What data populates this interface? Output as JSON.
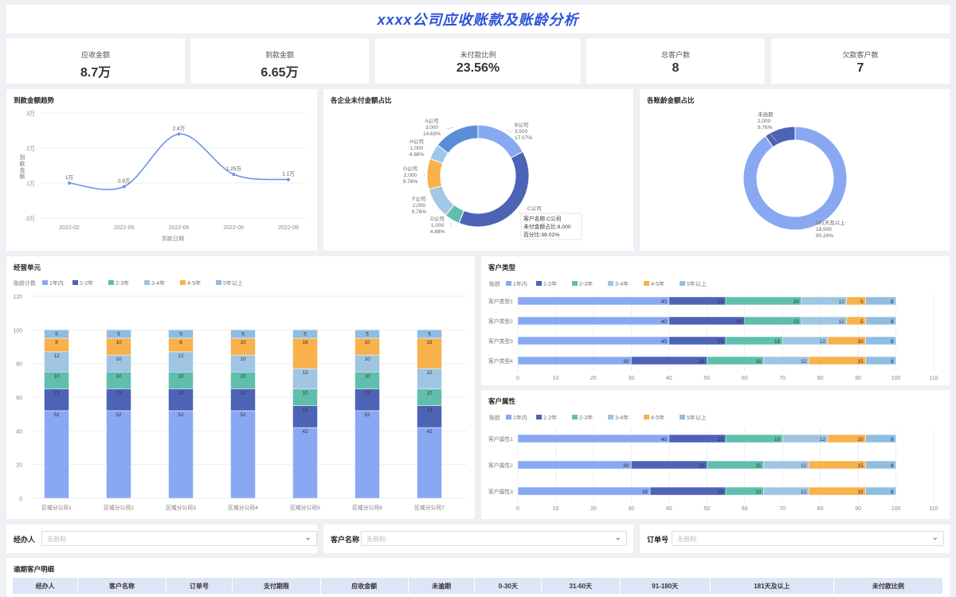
{
  "page_title": "xxxx公司应收账款及账龄分析",
  "kpis": [
    {
      "label": "应收金额",
      "value": "8.7万"
    },
    {
      "label": "到款金额",
      "value": "6.65万"
    },
    {
      "label": "未付款比例",
      "value": "23.56%"
    },
    {
      "label": "总客户数",
      "value": "8"
    },
    {
      "label": "欠款客户数",
      "value": "7"
    }
  ],
  "trend": {
    "title": "到款金额趋势",
    "y_axis_label": "到款金额",
    "x_axis_label": "到款日期",
    "y_ticks": [
      "3万",
      "2万",
      "1万",
      "0万"
    ],
    "categories": [
      "2022-02",
      "2022-05",
      "2022-06",
      "2022-08",
      "2022-09"
    ],
    "values": [
      1.0,
      0.9,
      2.4,
      1.25,
      1.1
    ],
    "value_labels": [
      "1万",
      "0.9万",
      "2.4万",
      "1.25万",
      "1.1万"
    ],
    "line_color": "#6f93e8"
  },
  "unpaid_pie": {
    "title": "各企业未付金额占比",
    "slices": [
      {
        "name": "A公司",
        "value": "3,000",
        "pct": "14.63%",
        "color": "#5b8ed6"
      },
      {
        "name": "B公司",
        "value": "3,500",
        "pct": "17.07%",
        "color": "#88a9f2"
      },
      {
        "name": "C公司",
        "value": "8,000",
        "pct": "39.02%",
        "color": "#4c63b6"
      },
      {
        "name": "D公司",
        "value": "1,000",
        "pct": "4.88%",
        "color": "#5fbfac"
      },
      {
        "name": "F公司",
        "value": "2,000",
        "pct": "9.76%",
        "color": "#a3c7e6"
      },
      {
        "name": "G公司",
        "value": "2,000",
        "pct": "9.76%",
        "color": "#f8b14b"
      },
      {
        "name": "H公司",
        "value": "1,000",
        "pct": "4.88%",
        "color": "#9cc8e8"
      }
    ],
    "tooltip": {
      "line1": "客户名称:C公司",
      "line2": "未付金额占比:8,000",
      "line3": "百分比:39.02%"
    }
  },
  "aging_pie": {
    "title": "各账龄金额占比",
    "slices": [
      {
        "name": "未逾期",
        "value": "2,000",
        "pct": "9.76%",
        "color": "#4c63b6"
      },
      {
        "name": "181天及以上",
        "value": "18,500",
        "pct": "90.24%",
        "color": "#88a9f2"
      }
    ]
  },
  "legend": {
    "prefix_count": "账龄计数",
    "prefix_short": "账龄",
    "items": [
      {
        "name": "1年内",
        "color": "#88a9f2"
      },
      {
        "name": "1-2年",
        "color": "#4c63b6"
      },
      {
        "name": "2-3年",
        "color": "#5fbfac"
      },
      {
        "name": "3-4年",
        "color": "#9fc5e3"
      },
      {
        "name": "4-5年",
        "color": "#f8b14b"
      },
      {
        "name": "5年以上",
        "color": "#8fbde3"
      }
    ]
  },
  "chart_data": [
    {
      "type": "bar",
      "title": "经营单元",
      "orientation": "vertical",
      "stacked": true,
      "ylim": [
        0,
        120
      ],
      "y_ticks": [
        0,
        20,
        40,
        60,
        80,
        100,
        120
      ],
      "categories": [
        "区域分公司1",
        "区域分公司2",
        "区域分公司3",
        "区域分公司4",
        "区域分公司5",
        "区域分公司6",
        "区域分公司7"
      ],
      "series": [
        {
          "name": "1年内",
          "values": [
            52,
            52,
            52,
            52,
            42,
            52,
            42
          ]
        },
        {
          "name": "1-2年",
          "values": [
            13,
            13,
            13,
            13,
            13,
            13,
            13
          ]
        },
        {
          "name": "2-3年",
          "values": [
            10,
            10,
            10,
            10,
            10,
            10,
            10
          ]
        },
        {
          "name": "3-4年",
          "values": [
            12,
            10,
            12,
            10,
            12,
            10,
            12
          ]
        },
        {
          "name": "4-5年",
          "values": [
            8,
            10,
            8,
            10,
            18,
            10,
            18
          ]
        },
        {
          "name": "5年以上",
          "values": [
            5,
            5,
            5,
            5,
            5,
            5,
            5
          ]
        }
      ]
    },
    {
      "type": "bar",
      "title": "客户类型",
      "orientation": "horizontal",
      "stacked": true,
      "xlim": [
        0,
        110
      ],
      "x_ticks": [
        0,
        10,
        20,
        30,
        40,
        50,
        60,
        70,
        80,
        90,
        100,
        110
      ],
      "categories": [
        "客户类型1",
        "客户类型2",
        "客户类型3",
        "客户类型4"
      ],
      "series": [
        {
          "name": "1年内",
          "values": [
            40,
            40,
            40,
            30
          ]
        },
        {
          "name": "1-2年",
          "values": [
            15,
            20,
            15,
            20
          ]
        },
        {
          "name": "2-3年",
          "values": [
            20,
            15,
            15,
            15
          ]
        },
        {
          "name": "3-4年",
          "values": [
            12,
            12,
            12,
            12
          ]
        },
        {
          "name": "4-5年",
          "values": [
            5,
            5,
            10,
            15
          ]
        },
        {
          "name": "5年以上",
          "values": [
            8,
            8,
            8,
            8
          ]
        }
      ]
    },
    {
      "type": "bar",
      "title": "客户属性",
      "orientation": "horizontal",
      "stacked": true,
      "xlim": [
        0,
        110
      ],
      "x_ticks": [
        0,
        10,
        20,
        30,
        40,
        50,
        60,
        70,
        80,
        90,
        100,
        110
      ],
      "categories": [
        "客户属性1",
        "客户属性2",
        "客户属性3"
      ],
      "series": [
        {
          "name": "1年内",
          "values": [
            40,
            30,
            35
          ]
        },
        {
          "name": "1-2年",
          "values": [
            15,
            20,
            20
          ]
        },
        {
          "name": "2-3年",
          "values": [
            15,
            15,
            10
          ]
        },
        {
          "name": "3-4年",
          "values": [
            12,
            12,
            12
          ]
        },
        {
          "name": "4-5年",
          "values": [
            10,
            15,
            15
          ]
        },
        {
          "name": "5年以上",
          "values": [
            8,
            8,
            8
          ]
        }
      ]
    }
  ],
  "filters": [
    {
      "label": "经办人",
      "placeholder": "无限制"
    },
    {
      "label": "客户名称",
      "placeholder": "无限制"
    },
    {
      "label": "订单号",
      "placeholder": "无限制"
    }
  ],
  "overdue_table": {
    "title": "逾期客户明细",
    "columns": [
      "经办人",
      "客户名称",
      "订单号",
      "支付期限",
      "应收金额",
      "未逾期",
      "0-30天",
      "31-60天",
      "91-180天",
      "181天及以上",
      "未付款比例"
    ]
  }
}
